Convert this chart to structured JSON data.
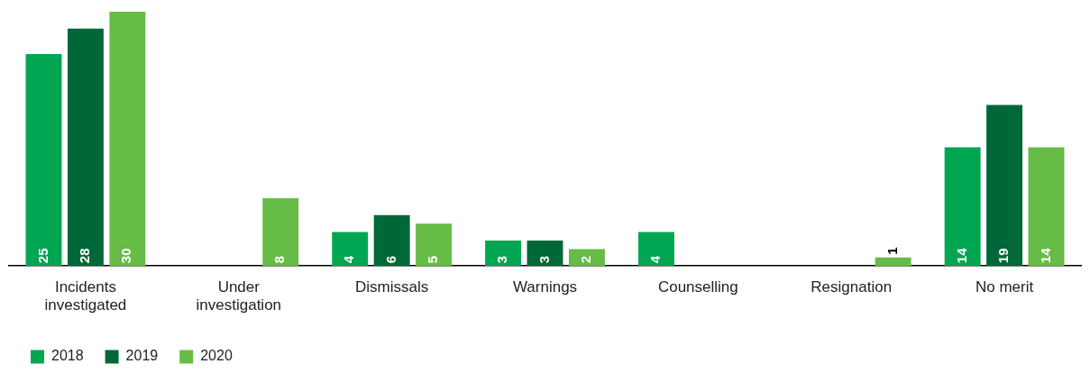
{
  "chart_data": {
    "type": "bar",
    "categories": [
      "Incidents investigated",
      "Under investigation",
      "Dismissals",
      "Warnings",
      "Counselling",
      "Resignation",
      "No merit"
    ],
    "series": [
      {
        "name": "2018",
        "color": "#00a651",
        "values": [
          25,
          null,
          4,
          3,
          4,
          null,
          14
        ]
      },
      {
        "name": "2019",
        "color": "#006838",
        "values": [
          28,
          null,
          6,
          3,
          null,
          null,
          19
        ]
      },
      {
        "name": "2020",
        "color": "#66bc46",
        "values": [
          30,
          8,
          5,
          2,
          null,
          1,
          14
        ]
      }
    ],
    "data_labels": true,
    "grid": false,
    "legend": "bottom"
  }
}
